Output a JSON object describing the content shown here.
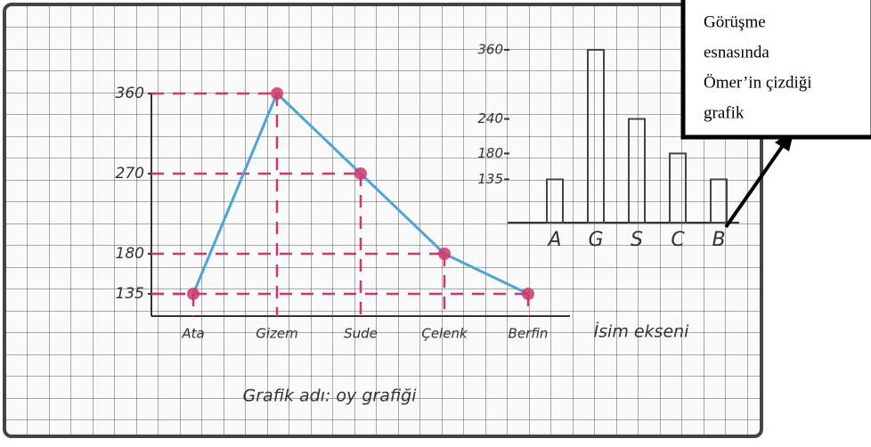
{
  "chart_data": [
    {
      "type": "line",
      "title": "Grafik adı: oy grafiği",
      "x_label": "İsim ekseni",
      "categories": [
        "Ata",
        "Gizem",
        "Sude",
        "Çelenk",
        "Berfin"
      ],
      "values": [
        135,
        360,
        270,
        180,
        135
      ],
      "color": "#4aa6d8",
      "marker_color": "#d2356c",
      "ylim": [
        110,
        380
      ],
      "yticks": [
        135,
        180,
        270,
        360
      ]
    },
    {
      "type": "bar",
      "categories": [
        "A",
        "G",
        "S",
        "C",
        "B"
      ],
      "values": [
        135,
        360,
        240,
        180,
        135
      ],
      "color": "#444",
      "ylim": [
        60,
        380
      ],
      "yticks": [
        135,
        180,
        240,
        360
      ]
    }
  ],
  "callout": {
    "lines": [
      "Görüşme",
      "esnasında",
      "Ömer’in çizdiği",
      "grafik"
    ]
  }
}
